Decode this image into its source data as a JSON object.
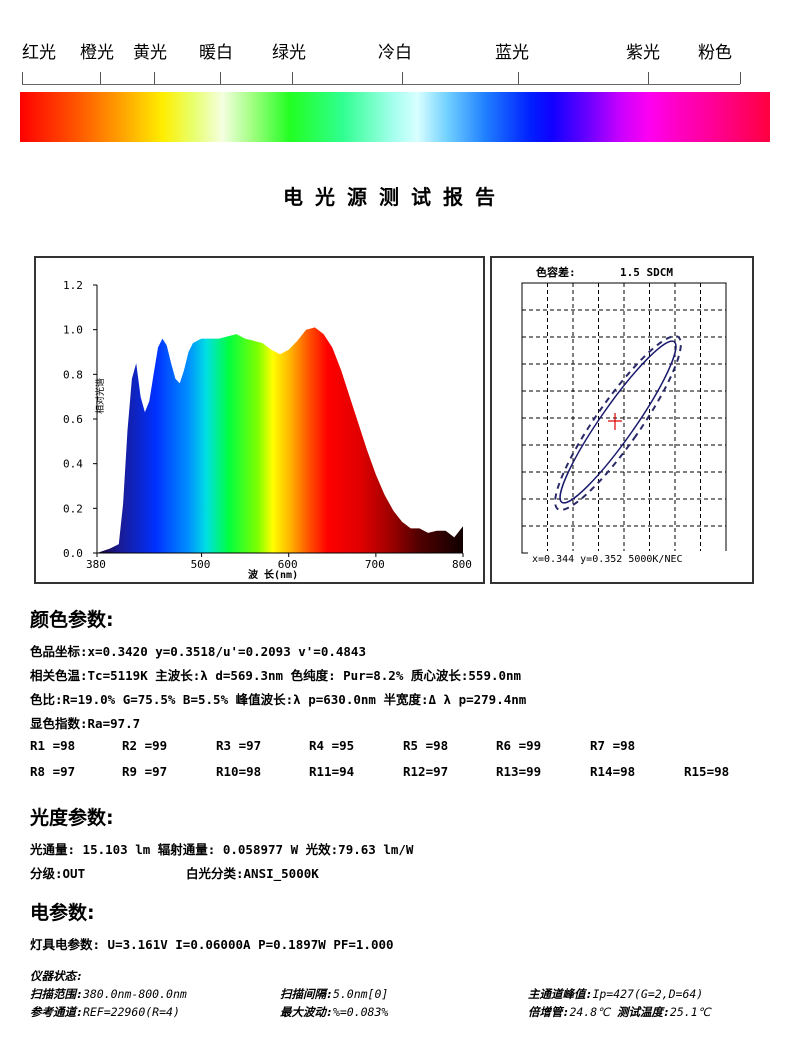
{
  "bands": [
    "红光",
    "橙光",
    "黄光",
    "暖白",
    "绿光",
    "冷白",
    "蓝光",
    "紫光",
    "粉色"
  ],
  "title": "电光源测试报告",
  "spectrum_chart": {
    "chart_data": {
      "type": "area",
      "xlabel": "波 长(nm)",
      "ylabel": "相对光谱",
      "xlim": [
        380,
        800
      ],
      "ylim": [
        0,
        1.2
      ],
      "x_ticks": [
        "380",
        "500",
        "600",
        "700",
        "800"
      ],
      "y_ticks": [
        "0.0",
        "0.2",
        "0.4",
        "0.6",
        "0.8",
        "1.0",
        "1.2"
      ],
      "x": [
        380,
        395,
        405,
        410,
        415,
        420,
        425,
        430,
        435,
        440,
        445,
        450,
        455,
        460,
        465,
        470,
        475,
        480,
        485,
        490,
        495,
        500,
        510,
        520,
        530,
        540,
        550,
        560,
        570,
        580,
        590,
        600,
        610,
        620,
        630,
        640,
        650,
        660,
        670,
        680,
        690,
        700,
        710,
        720,
        730,
        740,
        750,
        760,
        770,
        780,
        790,
        800
      ],
      "values": [
        0.0,
        0.02,
        0.04,
        0.22,
        0.55,
        0.78,
        0.85,
        0.7,
        0.63,
        0.68,
        0.8,
        0.92,
        0.96,
        0.93,
        0.85,
        0.78,
        0.76,
        0.82,
        0.9,
        0.94,
        0.95,
        0.96,
        0.96,
        0.96,
        0.97,
        0.98,
        0.96,
        0.95,
        0.94,
        0.91,
        0.89,
        0.91,
        0.95,
        1.0,
        1.01,
        0.98,
        0.92,
        0.82,
        0.7,
        0.58,
        0.46,
        0.35,
        0.26,
        0.19,
        0.14,
        0.11,
        0.11,
        0.09,
        0.1,
        0.1,
        0.07,
        0.12
      ]
    }
  },
  "chroma_panel": {
    "heading": "色容差:",
    "value": "1.5 SDCM",
    "footer": "x=0.344 y=0.352 5000K/NEC"
  },
  "color_params": {
    "heading": "颜色参数:",
    "chromaticity": "色品坐标:x=0.3420  y=0.3518/u'=0.2093  v'=0.4843",
    "cct": "相关色温:Tc=5119K  主波长:λ d=569.3nm 色纯度: Pur=8.2% 质心波长:559.0nm",
    "ratio": "色比:R=19.0% G=75.5% B=5.5%  峰值波长:λ p=630.0nm 半宽度:Δ λ p=279.4nm",
    "ra": "显色指数:Ra=97.7",
    "r_values_row1": [
      "R1 =98",
      "R2 =99",
      "R3 =97",
      "R4 =95",
      "R5 =98",
      "R6 =99",
      "R7 =98"
    ],
    "r_values_row2": [
      "R8 =97",
      "R9 =97",
      "R10=98",
      "R11=94",
      "R12=97",
      "R13=99",
      "R14=98",
      "R15=98"
    ]
  },
  "photo_params": {
    "heading": "光度参数:",
    "flux": "光通量: 15.103 lm   辐射通量: 0.058977 W   光效:79.63 lm/W",
    "grade": "分级:OUT",
    "white_class": "白光分类:ANSI_5000K"
  },
  "elec_params": {
    "heading": "电参数:",
    "values": "灯具电参数: U=3.161V  I=0.06000A  P=0.1897W PF=1.000"
  },
  "instrument": {
    "heading": "仪器状态:",
    "scan_range_label": "扫描范围:",
    "scan_range": "380.0nm-800.0nm",
    "scan_interval_label": "扫描间隔:",
    "scan_interval": "5.0nm[0]",
    "main_peak_label": "主通道峰值:",
    "main_peak": "Ip=427(G=2,D=64)",
    "ref_label": "参考通道:",
    "ref": "REF=22960(R=4)",
    "max_fluct_label": "最大波动:",
    "max_fluct": "%=0.083%",
    "gain_label": "倍增管:",
    "gain": "24.8℃",
    "test_temp_label": "测试温度:",
    "test_temp": "25.1℃"
  }
}
